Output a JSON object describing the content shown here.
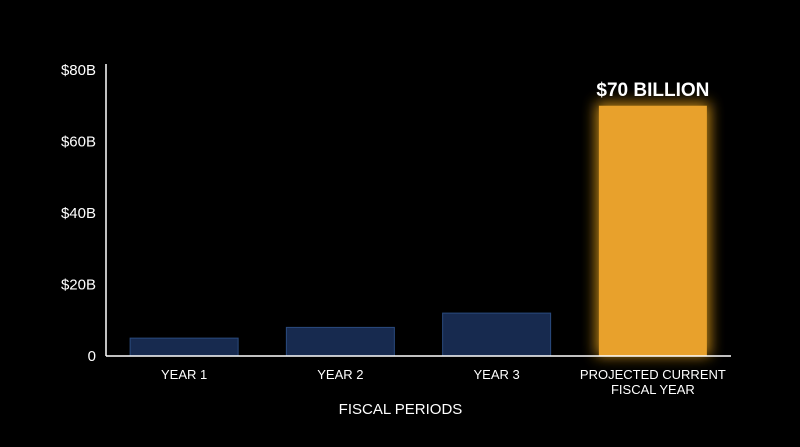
{
  "chart_data": {
    "type": "bar",
    "xlabel": "FISCAL PERIODS",
    "ylabel": "",
    "ylim": [
      0,
      80
    ],
    "yticks": [
      0,
      20,
      40,
      60,
      80
    ],
    "ytick_labels": [
      "0",
      "$20B",
      "$40B",
      "$60B",
      "$80B"
    ],
    "categories": [
      [
        "YEAR 1"
      ],
      [
        "YEAR 2"
      ],
      [
        "YEAR 3"
      ],
      [
        "PROJECTED CURRENT",
        "FISCAL YEAR"
      ]
    ],
    "values": [
      5,
      8,
      12,
      70
    ],
    "highlight_index": 3,
    "data_labels": [
      "",
      "",
      "",
      "$70 BILLION"
    ],
    "grid": false,
    "colors": {
      "background": "#000000",
      "bar": "#172a4f",
      "bar_stroke": "#2a4a7e",
      "highlight": "#e8a12c",
      "highlight_glow": "#ffb21f",
      "axis": "#ffffff",
      "text": "#ffffff"
    }
  }
}
